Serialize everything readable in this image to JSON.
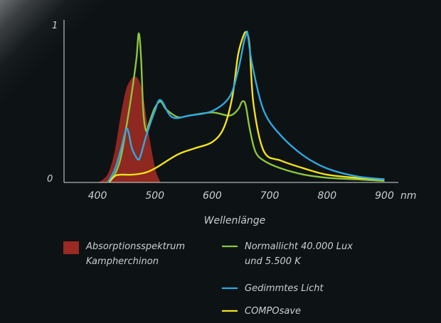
{
  "chart_data": {
    "type": "line",
    "title": "",
    "xlabel": "Wellenlänge",
    "ylabel": "",
    "x_unit": "nm",
    "xlim": [
      350,
      910
    ],
    "ylim": [
      0,
      1
    ],
    "x_ticks": [
      "400",
      "500",
      "600",
      "700",
      "800",
      "900"
    ],
    "y_ticks": [
      "0",
      "1"
    ],
    "grid": false,
    "legend_position": "bottom",
    "series": [
      {
        "name": "Absorptionsspektrum Kampherchinon",
        "kind": "area",
        "color": "#9a2a22",
        "x": [
          400,
          410,
          420,
          430,
          440,
          450,
          460,
          465,
          470,
          475,
          480,
          490,
          500,
          505,
          510
        ],
        "y": [
          0.0,
          0.02,
          0.07,
          0.2,
          0.42,
          0.6,
          0.67,
          0.68,
          0.67,
          0.63,
          0.55,
          0.3,
          0.1,
          0.04,
          0.0
        ]
      },
      {
        "name": "Normallicht 40.000 Lux und 5.500 K",
        "name_lines": [
          "Normallicht 40.000 Lux",
          "und 5.500 K"
        ],
        "color": "#8cc63f",
        "x": [
          418,
          430,
          440,
          450,
          460,
          468,
          472,
          476,
          480,
          485,
          490,
          500,
          510,
          520,
          540,
          560,
          600,
          630,
          645,
          652,
          658,
          665,
          675,
          690,
          720,
          760,
          800,
          850,
          900
        ],
        "y": [
          0.0,
          0.05,
          0.15,
          0.35,
          0.58,
          0.8,
          0.96,
          0.8,
          0.45,
          0.33,
          0.38,
          0.48,
          0.52,
          0.47,
          0.42,
          0.43,
          0.45,
          0.43,
          0.47,
          0.52,
          0.5,
          0.35,
          0.2,
          0.14,
          0.09,
          0.05,
          0.03,
          0.02,
          0.01
        ]
      },
      {
        "name": "Gedimmtes Licht",
        "color": "#2fa9e1",
        "x": [
          418,
          430,
          440,
          450,
          455,
          460,
          470,
          475,
          485,
          500,
          510,
          530,
          560,
          600,
          630,
          645,
          655,
          660,
          662,
          670,
          690,
          720,
          760,
          800,
          850,
          900
        ],
        "y": [
          0.0,
          0.08,
          0.2,
          0.34,
          0.31,
          0.22,
          0.15,
          0.17,
          0.3,
          0.46,
          0.53,
          0.42,
          0.43,
          0.46,
          0.55,
          0.72,
          0.9,
          0.96,
          0.95,
          0.75,
          0.46,
          0.3,
          0.17,
          0.09,
          0.04,
          0.02
        ]
      },
      {
        "name": "COMPOsave",
        "color": "#f4e21b",
        "x": [
          420,
          430,
          440,
          460,
          480,
          500,
          540,
          570,
          600,
          620,
          635,
          645,
          655,
          660,
          665,
          672,
          690,
          720,
          760,
          800,
          850,
          900
        ],
        "y": [
          0.0,
          0.04,
          0.05,
          0.05,
          0.06,
          0.09,
          0.18,
          0.22,
          0.26,
          0.35,
          0.55,
          0.82,
          0.95,
          0.96,
          0.88,
          0.5,
          0.2,
          0.14,
          0.09,
          0.05,
          0.03,
          0.02
        ]
      }
    ]
  }
}
